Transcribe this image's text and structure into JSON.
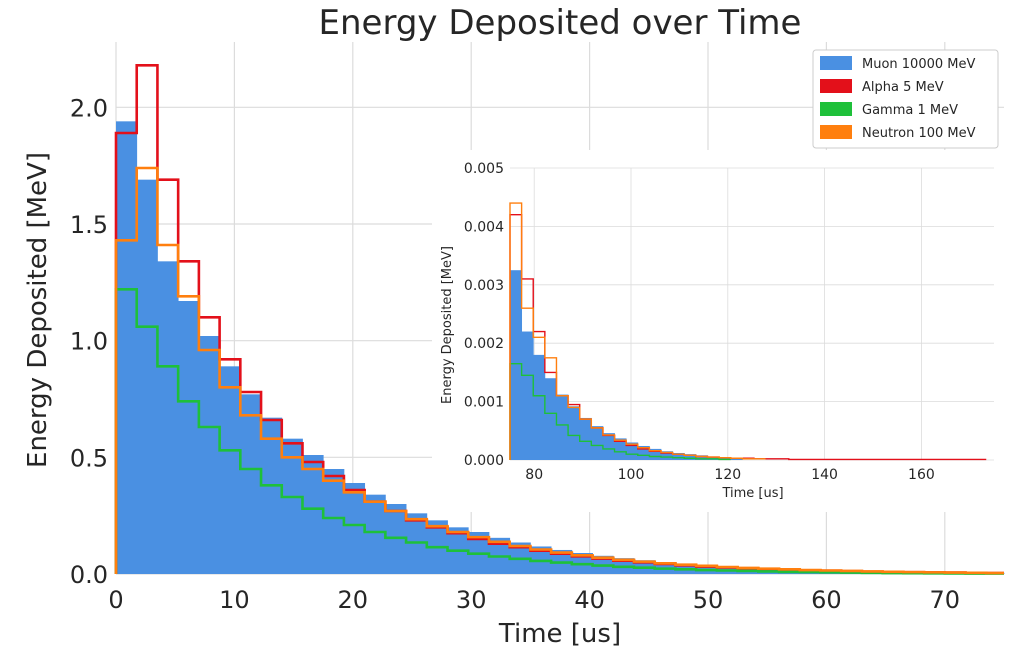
{
  "chart_data": {
    "type": "histogram",
    "title": "Energy Deposited over Time",
    "xlabel": "Time [us]",
    "ylabel": "Energy Deposited [MeV]",
    "xlim": [
      0,
      75
    ],
    "ylim": [
      0,
      2.28
    ],
    "xticks": [
      0,
      10,
      20,
      30,
      40,
      50,
      60,
      70
    ],
    "yticks": [
      0.0,
      0.5,
      1.0,
      1.5,
      2.0
    ],
    "xtick_labels": [
      "0",
      "10",
      "20",
      "30",
      "40",
      "50",
      "60",
      "70"
    ],
    "ytick_labels": [
      "0.0",
      "0.5",
      "1.0",
      "1.5",
      "2.0"
    ],
    "grid": true,
    "legend_position": "top-right",
    "bin_width": 1.75,
    "series": [
      {
        "name": "Muon 10000 MeV",
        "style": "filled",
        "color": "#4a90e2",
        "values": [
          1.94,
          1.69,
          1.34,
          1.17,
          1.02,
          0.89,
          0.77,
          0.67,
          0.58,
          0.51,
          0.45,
          0.39,
          0.34,
          0.3,
          0.26,
          0.23,
          0.2,
          0.18,
          0.155,
          0.135,
          0.118,
          0.103,
          0.09,
          0.078,
          0.068,
          0.059,
          0.051,
          0.044,
          0.038,
          0.033,
          0.029,
          0.025,
          0.022,
          0.019,
          0.017,
          0.015,
          0.013,
          0.011,
          0.0095,
          0.0082,
          0.007,
          0.006,
          0.005
        ]
      },
      {
        "name": "Alpha 5 MeV",
        "style": "step",
        "color": "#e3101a",
        "values": [
          1.89,
          2.18,
          1.69,
          1.34,
          1.1,
          0.92,
          0.78,
          0.66,
          0.56,
          0.48,
          0.42,
          0.36,
          0.31,
          0.27,
          0.23,
          0.2,
          0.175,
          0.15,
          0.13,
          0.115,
          0.1,
          0.087,
          0.076,
          0.066,
          0.057,
          0.05,
          0.043,
          0.037,
          0.032,
          0.028,
          0.024,
          0.021,
          0.018,
          0.016,
          0.014,
          0.012,
          0.01,
          0.009,
          0.008,
          0.007,
          0.006,
          0.005,
          0.004
        ]
      },
      {
        "name": "Gamma 1 MeV",
        "style": "step",
        "color": "#1ec03a",
        "values": [
          1.22,
          1.06,
          0.89,
          0.74,
          0.63,
          0.53,
          0.45,
          0.38,
          0.33,
          0.28,
          0.24,
          0.21,
          0.18,
          0.155,
          0.135,
          0.115,
          0.1,
          0.087,
          0.075,
          0.065,
          0.056,
          0.049,
          0.042,
          0.036,
          0.031,
          0.027,
          0.023,
          0.02,
          0.017,
          0.015,
          0.013,
          0.011,
          0.009,
          0.008,
          0.007,
          0.006,
          0.005,
          0.004,
          0.0035,
          0.003,
          0.0025,
          0.002,
          0.002
        ]
      },
      {
        "name": "Neutron 100 MeV",
        "style": "step",
        "color": "#ff7f0e",
        "values": [
          1.43,
          1.74,
          1.41,
          1.19,
          0.96,
          0.8,
          0.68,
          0.58,
          0.5,
          0.45,
          0.4,
          0.35,
          0.31,
          0.27,
          0.235,
          0.205,
          0.18,
          0.158,
          0.138,
          0.12,
          0.105,
          0.092,
          0.08,
          0.07,
          0.061,
          0.053,
          0.046,
          0.04,
          0.035,
          0.03,
          0.026,
          0.023,
          0.02,
          0.017,
          0.015,
          0.013,
          0.011,
          0.0095,
          0.008,
          0.007,
          0.006,
          0.005,
          0.004
        ]
      }
    ],
    "inset": {
      "type": "histogram",
      "xlabel": "Time [us]",
      "ylabel": "Energy Deposited [MeV]",
      "xlim": [
        75,
        175
      ],
      "ylim": [
        0,
        0.005
      ],
      "xticks": [
        80,
        100,
        120,
        140,
        160
      ],
      "yticks": [
        0.0,
        0.001,
        0.002,
        0.003,
        0.004,
        0.005
      ],
      "xtick_labels": [
        "80",
        "100",
        "120",
        "140",
        "160"
      ],
      "ytick_labels": [
        "0.000",
        "0.001",
        "0.002",
        "0.003",
        "0.004",
        "0.005"
      ],
      "start": 75,
      "bin_width": 2.4,
      "series": [
        {
          "name": "Muon 10000 MeV",
          "style": "filled",
          "color": "#4a90e2",
          "values": [
            0.00325,
            0.0022,
            0.0018,
            0.0014,
            0.00112,
            0.00092,
            0.00072,
            0.00058,
            0.00046,
            0.00037,
            0.0003,
            0.00024,
            0.00019,
            0.00015,
            0.00012,
            0.0001,
            8e-05,
            6e-05,
            5e-05,
            4e-05
          ]
        },
        {
          "name": "Alpha 5 MeV",
          "style": "step",
          "color": "#e3101a",
          "values": [
            0.0042,
            0.0031,
            0.0022,
            0.0015,
            0.0011,
            0.00095,
            0.0007,
            0.00055,
            0.00042,
            0.00032,
            0.00025,
            0.00019,
            0.00015,
            0.00012,
            0.0001,
            8e-05,
            6e-05,
            5e-05,
            4e-05,
            3e-05,
            3e-05,
            2e-05,
            2e-05,
            2e-05,
            1e-05,
            1e-05,
            1e-05,
            1e-05,
            1e-05,
            1e-05,
            1e-05,
            1e-05,
            1e-05,
            1e-05,
            1e-05,
            1e-05,
            1e-05,
            1e-05,
            1e-05,
            1e-05,
            1e-05
          ]
        },
        {
          "name": "Gamma 1 MeV",
          "style": "step",
          "color": "#1ec03a",
          "values": [
            0.00165,
            0.00145,
            0.0011,
            0.0008,
            0.0006,
            0.00042,
            0.00032,
            0.00025,
            0.00019,
            0.00014,
            0.0001,
            8e-05,
            6e-05,
            5e-05,
            4e-05,
            3e-05,
            2e-05,
            2e-05,
            1e-05
          ]
        },
        {
          "name": "Neutron 100 MeV",
          "style": "step",
          "color": "#ff7f0e",
          "values": [
            0.0044,
            0.0026,
            0.0021,
            0.00175,
            0.0011,
            0.0009,
            0.0007,
            0.00055,
            0.00043,
            0.00034,
            0.00027,
            0.00021,
            0.00016,
            0.00013,
            0.0001,
            8e-05,
            6e-05,
            5e-05,
            4e-05,
            3e-05,
            2e-05,
            2e-05
          ]
        }
      ]
    }
  }
}
